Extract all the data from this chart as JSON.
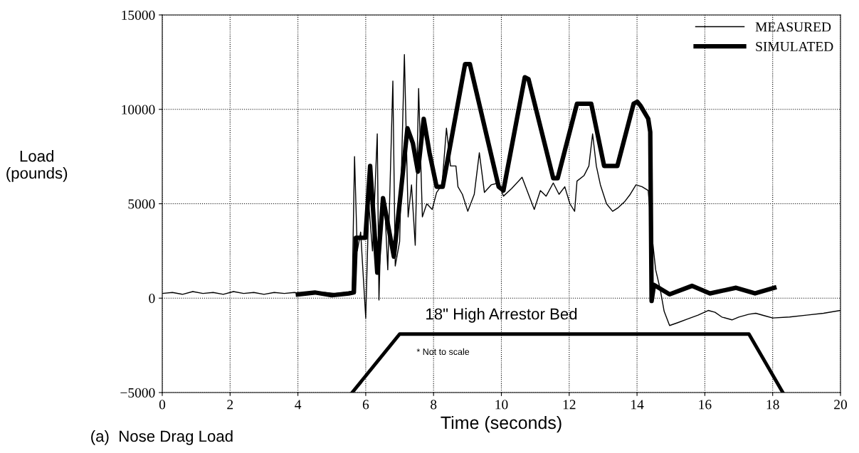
{
  "chart_data": {
    "type": "line",
    "xlabel": "Time (seconds)",
    "ylabel": "Load\n(pounds)",
    "xlim": [
      0,
      20
    ],
    "ylim": [
      -5000,
      15000
    ],
    "xticks": [
      0,
      2,
      4,
      6,
      8,
      10,
      12,
      14,
      16,
      18,
      20
    ],
    "yticks": [
      -5000,
      0,
      5000,
      10000,
      15000
    ],
    "grid": true,
    "legend": "top right",
    "line_style": "solid",
    "annotations": [
      "18\" High Arrestor Bed",
      "* Not to scale",
      "(a)  Nose Drag Load"
    ],
    "series": [
      {
        "name": "MEASURED",
        "color": "#000000",
        "x": [
          0,
          0.3,
          0.6,
          0.9,
          1.2,
          1.5,
          1.8,
          2.1,
          2.4,
          2.7,
          3.0,
          3.3,
          3.6,
          3.9,
          4.2,
          4.5,
          4.8,
          5.1,
          5.4,
          5.6,
          5.67,
          5.75,
          5.85,
          6.0,
          6.09,
          6.2,
          6.34,
          6.39,
          6.45,
          6.55,
          6.65,
          6.8,
          6.87,
          7.0,
          7.14,
          7.25,
          7.35,
          7.46,
          7.56,
          7.67,
          7.8,
          7.96,
          8.09,
          8.25,
          8.38,
          8.5,
          8.66,
          8.72,
          8.85,
          9.01,
          9.2,
          9.35,
          9.5,
          9.7,
          9.92,
          10.06,
          10.3,
          10.61,
          10.8,
          10.97,
          11.15,
          11.32,
          11.53,
          11.7,
          11.87,
          12.02,
          12.16,
          12.23,
          12.44,
          12.58,
          12.69,
          12.8,
          12.92,
          13.1,
          13.28,
          13.45,
          13.63,
          13.8,
          13.97,
          14.15,
          14.33,
          14.43,
          14.55,
          14.68,
          14.8,
          14.96,
          15.2,
          15.5,
          15.8,
          16.1,
          16.3,
          16.5,
          16.8,
          17.0,
          17.3,
          17.5,
          17.8,
          18.0,
          18.5,
          19.0,
          19.5,
          20.0
        ],
        "values": [
          250,
          300,
          200,
          350,
          250,
          300,
          200,
          350,
          250,
          300,
          200,
          300,
          250,
          300,
          200,
          250,
          300,
          250,
          300,
          350,
          7500,
          2500,
          3500,
          -1050,
          5000,
          2500,
          8700,
          -100,
          4000,
          5300,
          1500,
          11500,
          1700,
          3000,
          12900,
          4300,
          6000,
          2800,
          11100,
          4300,
          5000,
          4700,
          5600,
          6000,
          9000,
          7000,
          7000,
          5900,
          5500,
          4600,
          5500,
          7700,
          5600,
          6000,
          6100,
          5400,
          5800,
          6400,
          5500,
          4700,
          5700,
          5400,
          6100,
          5500,
          5900,
          5000,
          4600,
          6200,
          6500,
          7000,
          8700,
          7000,
          6000,
          5000,
          4600,
          4800,
          5100,
          5500,
          6000,
          5900,
          5700,
          3500,
          1500,
          500,
          -700,
          -1450,
          -1300,
          -1100,
          -900,
          -650,
          -750,
          -1000,
          -1150,
          -1000,
          -850,
          -800,
          -950,
          -1050,
          -1000,
          -900,
          -800,
          -650
        ]
      },
      {
        "name": "SIMULATED",
        "color": "#000000",
        "x": [
          4.0,
          4.5,
          5.0,
          5.5,
          5.65,
          5.71,
          5.99,
          6.13,
          6.34,
          6.51,
          6.83,
          7.04,
          7.23,
          7.39,
          7.54,
          7.71,
          7.88,
          8.09,
          8.27,
          8.93,
          9.07,
          9.92,
          10.06,
          10.69,
          10.8,
          11.53,
          11.66,
          12.23,
          12.65,
          13.03,
          13.42,
          13.9,
          14.01,
          14.1,
          14.33,
          14.39,
          14.43,
          14.5,
          14.96,
          15.62,
          16.15,
          16.92,
          17.48,
          18.05
        ],
        "values": [
          200,
          300,
          150,
          250,
          300,
          3200,
          3200,
          7000,
          1350,
          5300,
          2200,
          5700,
          9000,
          8200,
          6700,
          9500,
          7700,
          5900,
          5900,
          12400,
          12400,
          5900,
          5700,
          11700,
          11600,
          6350,
          6350,
          10300,
          10300,
          7000,
          7000,
          10300,
          10400,
          10200,
          9500,
          8800,
          -150,
          700,
          200,
          650,
          250,
          550,
          250,
          550
        ]
      },
      {
        "color": "#000000",
        "x": [
          5.6,
          7.0,
          17.3,
          18.3
        ],
        "values": [
          -5000,
          -1900,
          -1900,
          -5000
        ]
      }
    ]
  }
}
